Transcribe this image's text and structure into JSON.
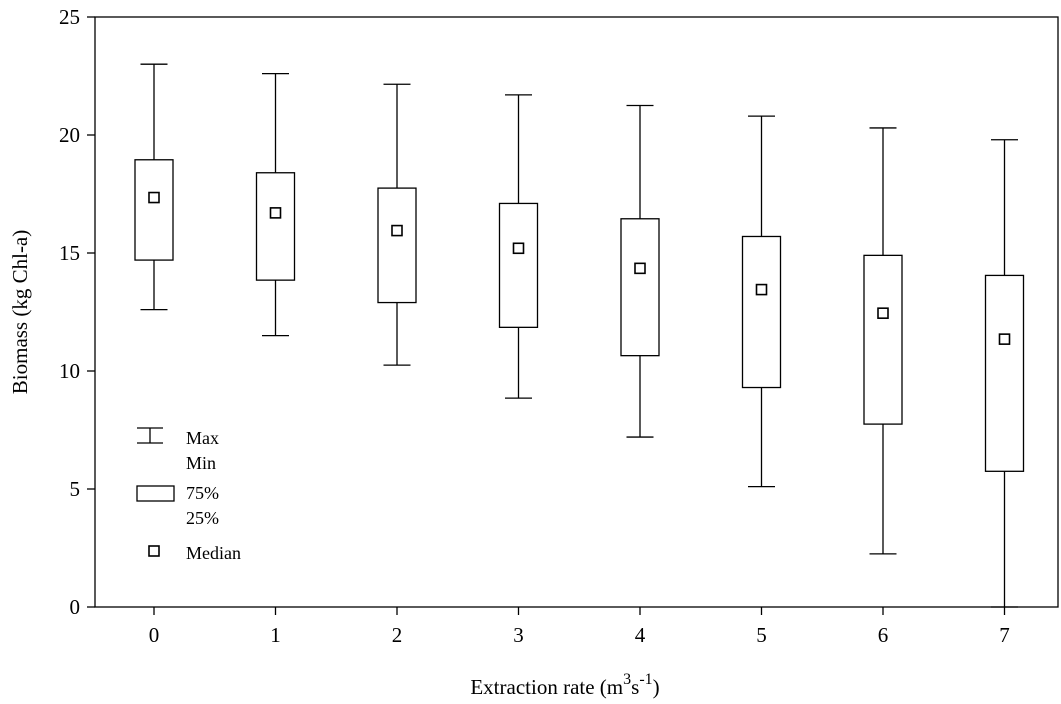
{
  "chart_data": {
    "type": "box",
    "xlabel": "Extraction rate (m3s-1)",
    "xlabel_parts": {
      "base": "Extraction rate (m",
      "sup1": "3",
      "mid": "s",
      "sup2": "-1",
      "end": ")"
    },
    "ylabel": "Biomass (kg Chl-a)",
    "ylim": [
      0,
      25
    ],
    "yticks": [
      "0",
      "5",
      "10",
      "15",
      "20",
      "25"
    ],
    "ytick_values": [
      0,
      5,
      10,
      15,
      20,
      25
    ],
    "categories": [
      "0",
      "1",
      "2",
      "3",
      "4",
      "5",
      "6",
      "7"
    ],
    "max": [
      23.0,
      22.6,
      22.15,
      21.7,
      21.25,
      20.8,
      20.3,
      19.8
    ],
    "q75": [
      18.95,
      18.4,
      17.75,
      17.1,
      16.45,
      15.7,
      14.9,
      14.05
    ],
    "median": [
      17.35,
      16.7,
      15.95,
      15.2,
      14.35,
      13.45,
      12.45,
      11.35
    ],
    "q25": [
      14.7,
      13.85,
      12.9,
      11.85,
      10.65,
      9.3,
      7.75,
      5.75
    ],
    "min": [
      12.6,
      11.5,
      10.25,
      8.85,
      7.2,
      5.1,
      2.25,
      0.0
    ],
    "legend": {
      "placement": "bottom-left",
      "max_label": "Max",
      "min_label": "Min",
      "q75_label": "75%",
      "q25_label": "25%",
      "median_label": "Median"
    },
    "grid": false
  }
}
